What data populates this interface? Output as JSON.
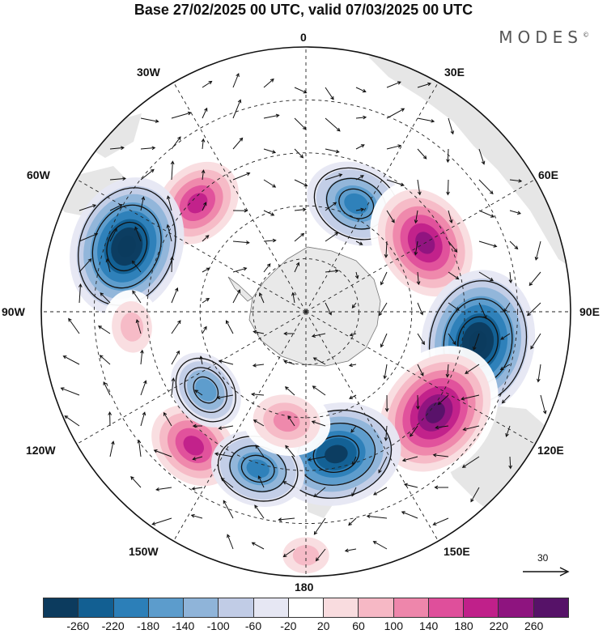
{
  "title": "Base 27/02/2025 00 UTC, valid 07/03/2025 00 UTC",
  "brand": "MODES",
  "brand_mark": "©",
  "longitude_labels": {
    "lon_0": "0",
    "lon_30e": "30E",
    "lon_60e": "60E",
    "lon_90e": "90E",
    "lon_120e": "120E",
    "lon_150e": "150E",
    "lon_180": "180",
    "lon_150w": "150W",
    "lon_120w": "120W",
    "lon_90w": "90W",
    "lon_60w": "60W",
    "lon_30w": "30W"
  },
  "reference_vector": {
    "label": "30"
  },
  "colorbar": {
    "colors": [
      "#0c3b5e",
      "#125f92",
      "#2c7fb8",
      "#5c9ccc",
      "#8fb4d9",
      "#c1cce6",
      "#e6e7f3",
      "#ffffff",
      "#f9dcdf",
      "#f6b8c5",
      "#ee86ab",
      "#df4f9b",
      "#c0208a",
      "#8e147f",
      "#561268"
    ],
    "labels": [
      "-260",
      "-220",
      "-180",
      "-140",
      "-100",
      "-60",
      "-20",
      "20",
      "60",
      "100",
      "140",
      "180",
      "220",
      "260"
    ]
  },
  "map_data": {
    "projection": "south-polar-stereographic",
    "anomaly_centers": [
      {
        "name": "negative-30e",
        "sign": "negative",
        "value": -160,
        "lon_deg": 25,
        "colat_frac": 0.45
      },
      {
        "name": "positive-40w",
        "sign": "positive",
        "value": 180,
        "lon_deg": -45,
        "colat_frac": 0.58
      },
      {
        "name": "positive-50e",
        "sign": "positive",
        "value": 240,
        "lon_deg": 60,
        "colat_frac": 0.52
      },
      {
        "name": "negative-70w",
        "sign": "negative",
        "value": -270,
        "lon_deg": -70,
        "colat_frac": 0.72
      },
      {
        "name": "negative-100e",
        "sign": "negative",
        "value": -280,
        "lon_deg": 100,
        "colat_frac": 0.66
      },
      {
        "name": "positive-130e",
        "sign": "positive",
        "value": 280,
        "lon_deg": 128,
        "colat_frac": 0.62
      },
      {
        "name": "negative-170e",
        "sign": "negative",
        "value": -240,
        "lon_deg": 168,
        "colat_frac": 0.55
      },
      {
        "name": "positive-145w",
        "sign": "positive",
        "value": 180,
        "lon_deg": -140,
        "colat_frac": 0.66
      },
      {
        "name": "negative-160w",
        "sign": "negative",
        "value": -140,
        "lon_deg": -163,
        "colat_frac": 0.62
      },
      {
        "name": "positive-170w",
        "sign": "positive",
        "value": 120,
        "lon_deg": -170,
        "colat_frac": 0.42
      },
      {
        "name": "negative-130w",
        "sign": "negative",
        "value": -100,
        "lon_deg": -128,
        "colat_frac": 0.48
      },
      {
        "name": "positive-95w",
        "sign": "positive",
        "value": 80,
        "lon_deg": -95,
        "colat_frac": 0.66
      },
      {
        "name": "positive-180",
        "sign": "positive",
        "value": 60,
        "lon_deg": 180,
        "colat_frac": 0.92
      }
    ]
  }
}
